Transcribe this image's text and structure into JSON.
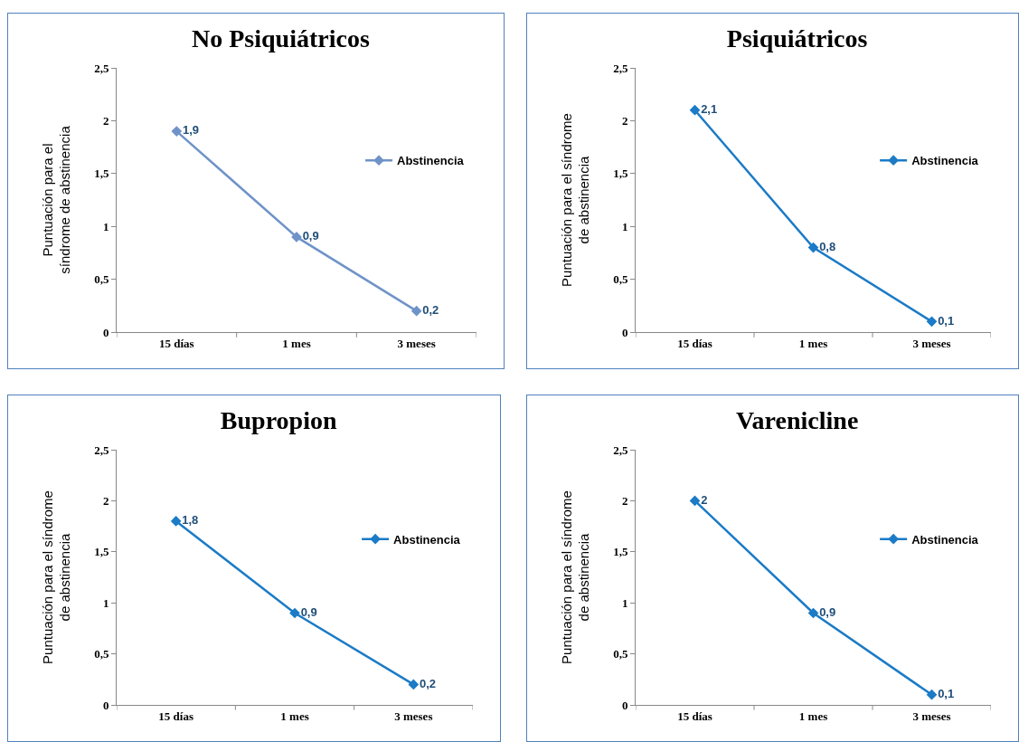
{
  "chart_data": [
    {
      "type": "line",
      "title": "No Psiquiátricos",
      "ylabel": "Puntuación para el\nsíndrome de abstinencia",
      "categories": [
        "15 días",
        "1 mes",
        "3 meses"
      ],
      "series": [
        {
          "name": "Abstinencia",
          "color": "#6f93c8",
          "values": [
            1.9,
            0.9,
            0.2
          ],
          "value_labels": [
            "1,9",
            "0,9",
            "0,2"
          ]
        }
      ],
      "ylim": [
        0,
        2.5
      ],
      "yticks": [
        0,
        {
          "value": 0.5,
          "label": "0,5"
        },
        1,
        {
          "value": 1.5,
          "label": "1,5"
        },
        2,
        {
          "value": 2.5,
          "label": "2,5"
        }
      ],
      "grid": false,
      "legend": "right",
      "marker": "diamond",
      "line_style": "solid"
    },
    {
      "type": "line",
      "title": "Psiquiátricos",
      "ylabel": "Puntuación para el síndrome\nde abstinencia",
      "categories": [
        "15 días",
        "1 mes",
        "3 meses"
      ],
      "series": [
        {
          "name": "Abstinencia",
          "color": "#1b7bc6",
          "values": [
            2.1,
            0.8,
            0.1
          ],
          "value_labels": [
            "2,1",
            "0,8",
            "0,1"
          ]
        }
      ],
      "ylim": [
        0,
        2.5
      ],
      "yticks": [
        0,
        {
          "value": 0.5,
          "label": "0,5"
        },
        1,
        {
          "value": 1.5,
          "label": "1,5"
        },
        2,
        {
          "value": 2.5,
          "label": "2,5"
        }
      ],
      "grid": false,
      "legend": "right",
      "marker": "diamond",
      "line_style": "solid"
    },
    {
      "type": "line",
      "title": "Bupropion",
      "ylabel": "Puntuación para el síndrome\nde abstinencia",
      "categories": [
        "15 días",
        "1 mes",
        "3 meses"
      ],
      "series": [
        {
          "name": "Abstinencia",
          "color": "#1b7bc6",
          "values": [
            1.8,
            0.9,
            0.2
          ],
          "value_labels": [
            "1,8",
            "0,9",
            "0,2"
          ]
        }
      ],
      "ylim": [
        0,
        2.5
      ],
      "yticks": [
        0,
        {
          "value": 0.5,
          "label": "0,5"
        },
        1,
        {
          "value": 1.5,
          "label": "1,5"
        },
        2,
        {
          "value": 2.5,
          "label": "2,5"
        }
      ],
      "grid": false,
      "legend": "right",
      "marker": "diamond",
      "line_style": "solid"
    },
    {
      "type": "line",
      "title": "Varenicline",
      "ylabel": "Puntuación para el síndrome\nde abstinencia",
      "categories": [
        "15 días",
        "1 mes",
        "3 meses"
      ],
      "series": [
        {
          "name": "Abstinencia",
          "color": "#1b7bc6",
          "values": [
            2,
            0.9,
            0.1
          ],
          "value_labels": [
            "2",
            "0,9",
            "0,1"
          ]
        }
      ],
      "ylim": [
        0,
        2.5
      ],
      "yticks": [
        0,
        {
          "value": 0.5,
          "label": "0,5"
        },
        1,
        {
          "value": 1.5,
          "label": "1,5"
        },
        2,
        {
          "value": 2.5,
          "label": "2,5"
        }
      ],
      "grid": false,
      "legend": "right",
      "marker": "diamond",
      "line_style": "solid"
    }
  ]
}
